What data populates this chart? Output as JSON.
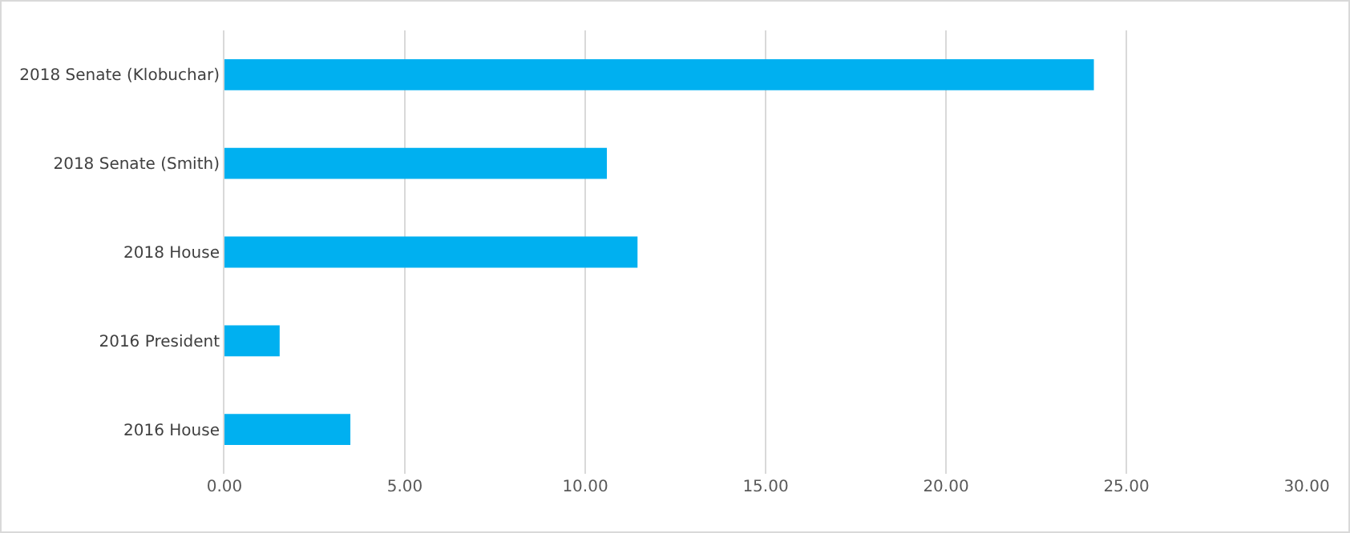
{
  "chart_data": {
    "type": "bar",
    "orientation": "horizontal",
    "categories": [
      "2018 Senate (Klobuchar)",
      "2018 Senate (Smith)",
      "2018 House",
      "2016 President",
      "2016 House"
    ],
    "values": [
      24.1,
      10.6,
      11.45,
      1.53,
      3.49
    ],
    "color": "#00b0f0",
    "xlim": [
      0,
      30
    ],
    "xticks": [
      {
        "value": 0,
        "label": "0.00"
      },
      {
        "value": 5,
        "label": "5.00"
      },
      {
        "value": 10,
        "label": "10.00"
      },
      {
        "value": 15,
        "label": "15.00"
      },
      {
        "value": 20,
        "label": "20.00"
      },
      {
        "value": 25,
        "label": "25.00"
      },
      {
        "value": 30,
        "label": "30.00"
      }
    ],
    "grid": "x",
    "legend": false
  }
}
